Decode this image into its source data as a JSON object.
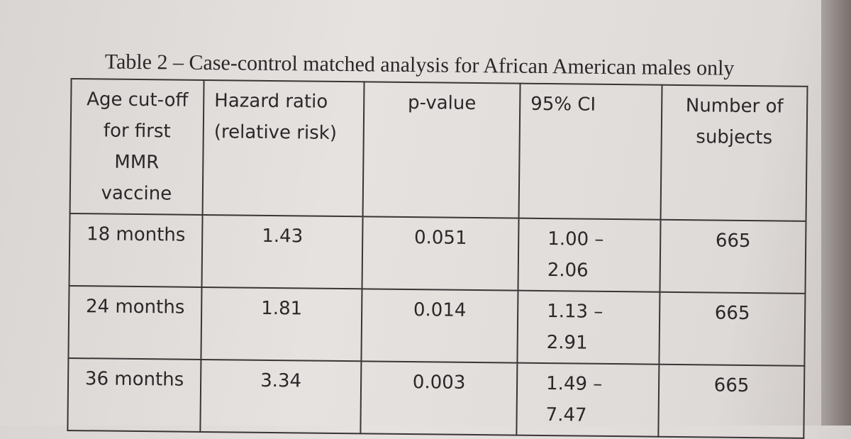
{
  "title": "Table 2 – Case-control matched analysis for African American males only",
  "table": {
    "header": [
      "Age cut-off for first MMR vaccine",
      "Hazard ratio (relative risk)",
      "p-value",
      "95% CI",
      "Number of subjects"
    ],
    "rows": [
      [
        "18 months",
        "1.43",
        "0.051",
        "1.00 – 2.06",
        "665"
      ],
      [
        "24 months",
        "1.81",
        "0.014",
        "1.13 – 2.91",
        "665"
      ],
      [
        "36 months",
        "3.34",
        "0.003",
        "1.49 – 7.47",
        "665"
      ]
    ]
  }
}
